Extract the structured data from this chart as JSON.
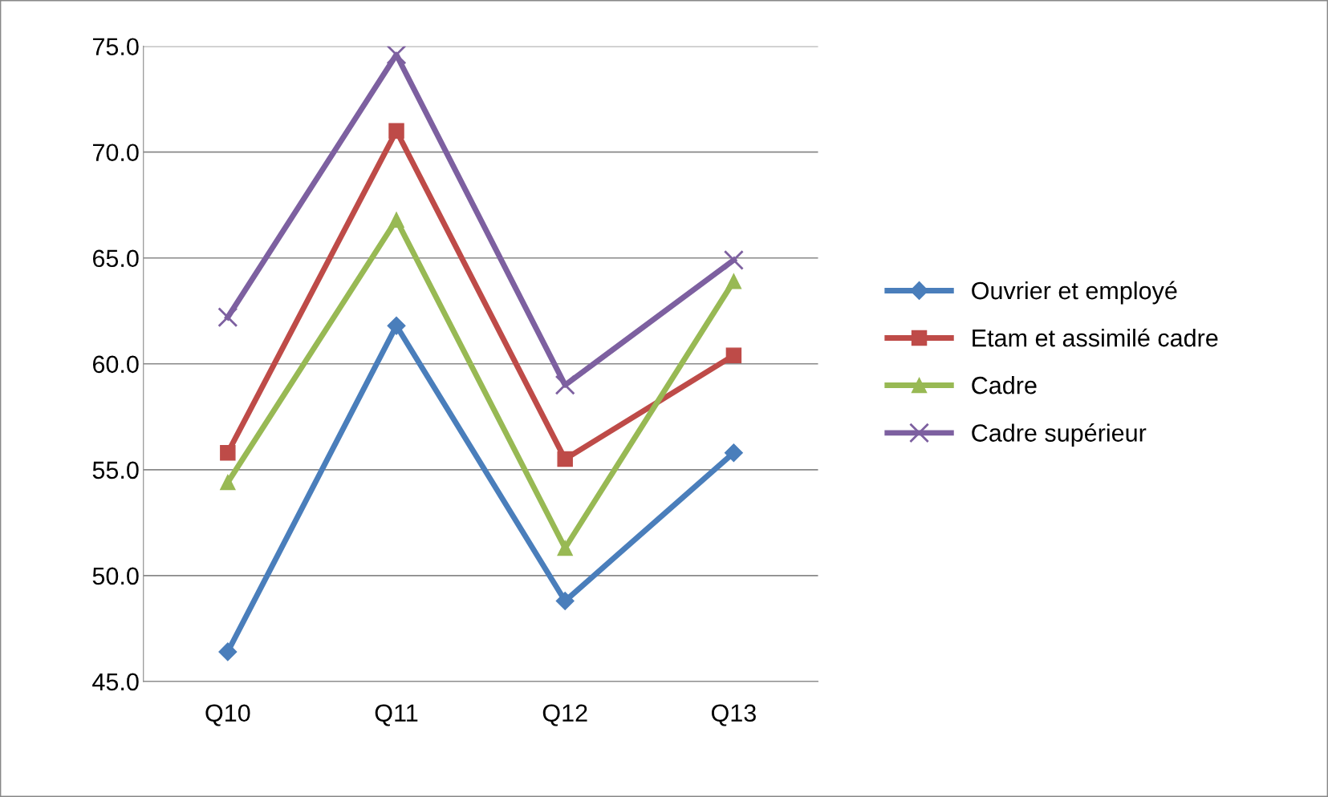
{
  "chart_data": {
    "type": "line",
    "categories": [
      "Q10",
      "Q11",
      "Q12",
      "Q13"
    ],
    "series": [
      {
        "name": "Ouvrier et employé",
        "color": "#4a7ebb",
        "marker": "diamond",
        "values": [
          46.4,
          61.8,
          48.8,
          55.8
        ]
      },
      {
        "name": "Etam et assimilé cadre",
        "color": "#be4b48",
        "marker": "square",
        "values": [
          55.8,
          71.0,
          55.5,
          60.4
        ]
      },
      {
        "name": "Cadre",
        "color": "#98b954",
        "marker": "triangle",
        "values": [
          54.4,
          66.8,
          51.3,
          63.9
        ]
      },
      {
        "name": "Cadre supérieur",
        "color": "#7d60a0",
        "marker": "cross",
        "values": [
          62.2,
          74.6,
          59.0,
          64.9
        ]
      }
    ],
    "ylim": [
      45,
      75
    ],
    "yticks": [
      {
        "value": 45,
        "label": "45.0"
      },
      {
        "value": 50,
        "label": "50.0"
      },
      {
        "value": 55,
        "label": "55.0"
      },
      {
        "value": 60,
        "label": "60.0"
      },
      {
        "value": 65,
        "label": "65.0"
      },
      {
        "value": 70,
        "label": "70.0"
      },
      {
        "value": 75,
        "label": "75.0"
      }
    ],
    "grid": "y",
    "legend": "right"
  }
}
